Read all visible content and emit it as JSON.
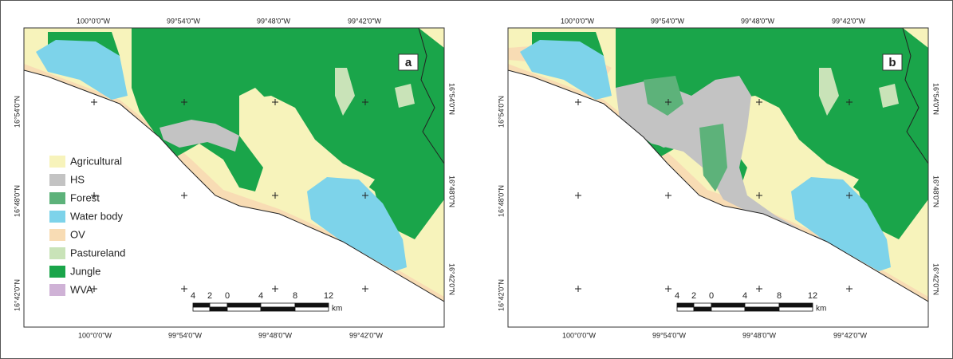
{
  "panels": [
    {
      "label": "a",
      "top_labels": [
        "100°0'0\"W",
        "99°54'0\"W",
        "99°48'0\"W",
        "99°42'0\"W"
      ],
      "bottom_labels": [
        "100°0'0\"W",
        "99°54'0\"W",
        "99°48'0\"W",
        "99°42'0\"W"
      ],
      "left_labels": [
        "16°54'0\"N",
        "16°48'0\"N",
        "16°42'0\"N"
      ],
      "right_labels": [
        "16°54'0\"N",
        "16°48'0\"N",
        "16°42'0\"N"
      ],
      "scale": {
        "ticks": [
          "4",
          "2",
          "0",
          "4",
          "8",
          "12"
        ],
        "unit": "km"
      }
    },
    {
      "label": "b",
      "top_labels": [
        "100°0'0\"W",
        "99°54'0\"W",
        "99°48'0\"W",
        "99°42'0\"W"
      ],
      "bottom_labels": [
        "100°0'0\"W",
        "99°54'0\"W",
        "99°48'0\"W",
        "99°42'0\"W"
      ],
      "left_labels": [
        "16°54'0\"N",
        "16°48'0\"N",
        "16°42'0\"N"
      ],
      "right_labels": [
        "16°54'0\"N",
        "16°48'0\"N",
        "16°42'0\"N"
      ],
      "scale": {
        "ticks": [
          "4",
          "2",
          "0",
          "4",
          "8",
          "12"
        ],
        "unit": "km"
      }
    }
  ],
  "legend": {
    "items": [
      "Agricultural",
      "HS",
      "Forest",
      "Water body",
      "OV",
      "Pastureland",
      "Jungle",
      "WVA"
    ]
  }
}
